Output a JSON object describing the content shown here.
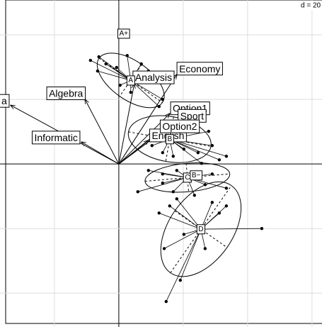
{
  "chart_data": {
    "type": "scatter",
    "scale_label": "d = 20",
    "xlim": [
      -36.9,
      63.1
    ],
    "ylim": [
      -50.5,
      50.8
    ],
    "xticks": [
      -20,
      0,
      20,
      40,
      60
    ],
    "yticks": [
      -40,
      -20,
      0,
      20,
      40
    ],
    "grid": true,
    "variables": [
      {
        "name": "Economy",
        "x": 18.0,
        "y": 27.7
      },
      {
        "name": "Analysis",
        "x": 4.8,
        "y": 24.8
      },
      {
        "name": "Algebra",
        "x": -10.5,
        "y": 20.0
      },
      {
        "name": "a",
        "x": -33.6,
        "y": 18.2
      },
      {
        "name": "Informatic",
        "x": -11.6,
        "y": 6.8
      },
      {
        "name": "English",
        "x": 9.2,
        "y": 7.3
      },
      {
        "name": "Option1",
        "x": 15.8,
        "y": 15.6
      },
      {
        "name": "Sport",
        "x": 18.0,
        "y": 13.4
      },
      {
        "name": "Option2",
        "x": 12.5,
        "y": 10.1
      }
    ],
    "classes": [
      {
        "name": "A+",
        "cx": 1.5,
        "cy": 40.4,
        "points": []
      },
      {
        "name": "A",
        "cx": 3.7,
        "cy": 25.9,
        "rx": 12,
        "ry": 6,
        "angle": -35,
        "points": [
          [
            -8.8,
            32.1
          ],
          [
            -6.2,
            33.2
          ],
          [
            -4.0,
            31.0
          ],
          [
            -6.6,
            28.8
          ],
          [
            -0.7,
            29.9
          ],
          [
            2.6,
            33.6
          ],
          [
            7.0,
            31.0
          ],
          [
            9.2,
            28.8
          ],
          [
            13.6,
            20.0
          ],
          [
            12.5,
            17.8
          ],
          [
            0.4,
            24.4
          ],
          [
            3.7,
            22.2
          ]
        ]
      },
      {
        "name": "B",
        "cx": 15.8,
        "cy": 7.7,
        "rx": 13,
        "ry": 7,
        "angle": -10,
        "points": [
          [
            26.8,
            17.8
          ],
          [
            27.9,
            10.1
          ],
          [
            29.0,
            5.7
          ],
          [
            24.6,
            3.5
          ],
          [
            20.2,
            4.6
          ],
          [
            16.9,
            2.4
          ],
          [
            13.6,
            3.5
          ],
          [
            10.3,
            5.7
          ],
          [
            22.4,
            13.4
          ],
          [
            19.1,
            14.5
          ],
          [
            14.1,
            11.2
          ],
          [
            25.7,
            0.2
          ],
          [
            31.2,
            1.3
          ],
          [
            33.4,
            2.4
          ]
        ]
      },
      {
        "name": "C",
        "cx": 21.3,
        "cy": -4.2,
        "rx": 13.2,
        "ry": 4.4,
        "angle": 5,
        "points": [
          [
            9.2,
            -2.0
          ],
          [
            13.6,
            -5.9
          ],
          [
            16.9,
            -8.6
          ],
          [
            13.6,
            -3.1
          ],
          [
            29.0,
            -3.1
          ],
          [
            33.4,
            -7.5
          ],
          [
            26.8,
            -6.4
          ],
          [
            5.9,
            -8.6
          ],
          [
            18.0,
            -2.0
          ],
          [
            23.5,
            -9.7
          ]
        ]
      },
      {
        "name": "B−",
        "cx": 24.0,
        "cy": -3.5,
        "points": []
      },
      {
        "name": "D",
        "cx": 25.5,
        "cy": -20.2,
        "rx": 16.5,
        "ry": 9.9,
        "angle": 55,
        "points": [
          [
            14.7,
            -42.6
          ],
          [
            19.1,
            -36.0
          ],
          [
            14.1,
            -26.2
          ],
          [
            15.8,
            -13.0
          ],
          [
            12.5,
            -15.2
          ],
          [
            31.2,
            -15.2
          ],
          [
            33.4,
            -13.0
          ],
          [
            44.4,
            -20.0
          ],
          [
            29.0,
            -11.9
          ],
          [
            20.2,
            -21.8
          ],
          [
            26.8,
            -26.2
          ],
          [
            18.0,
            -10.8
          ]
        ]
      }
    ]
  }
}
